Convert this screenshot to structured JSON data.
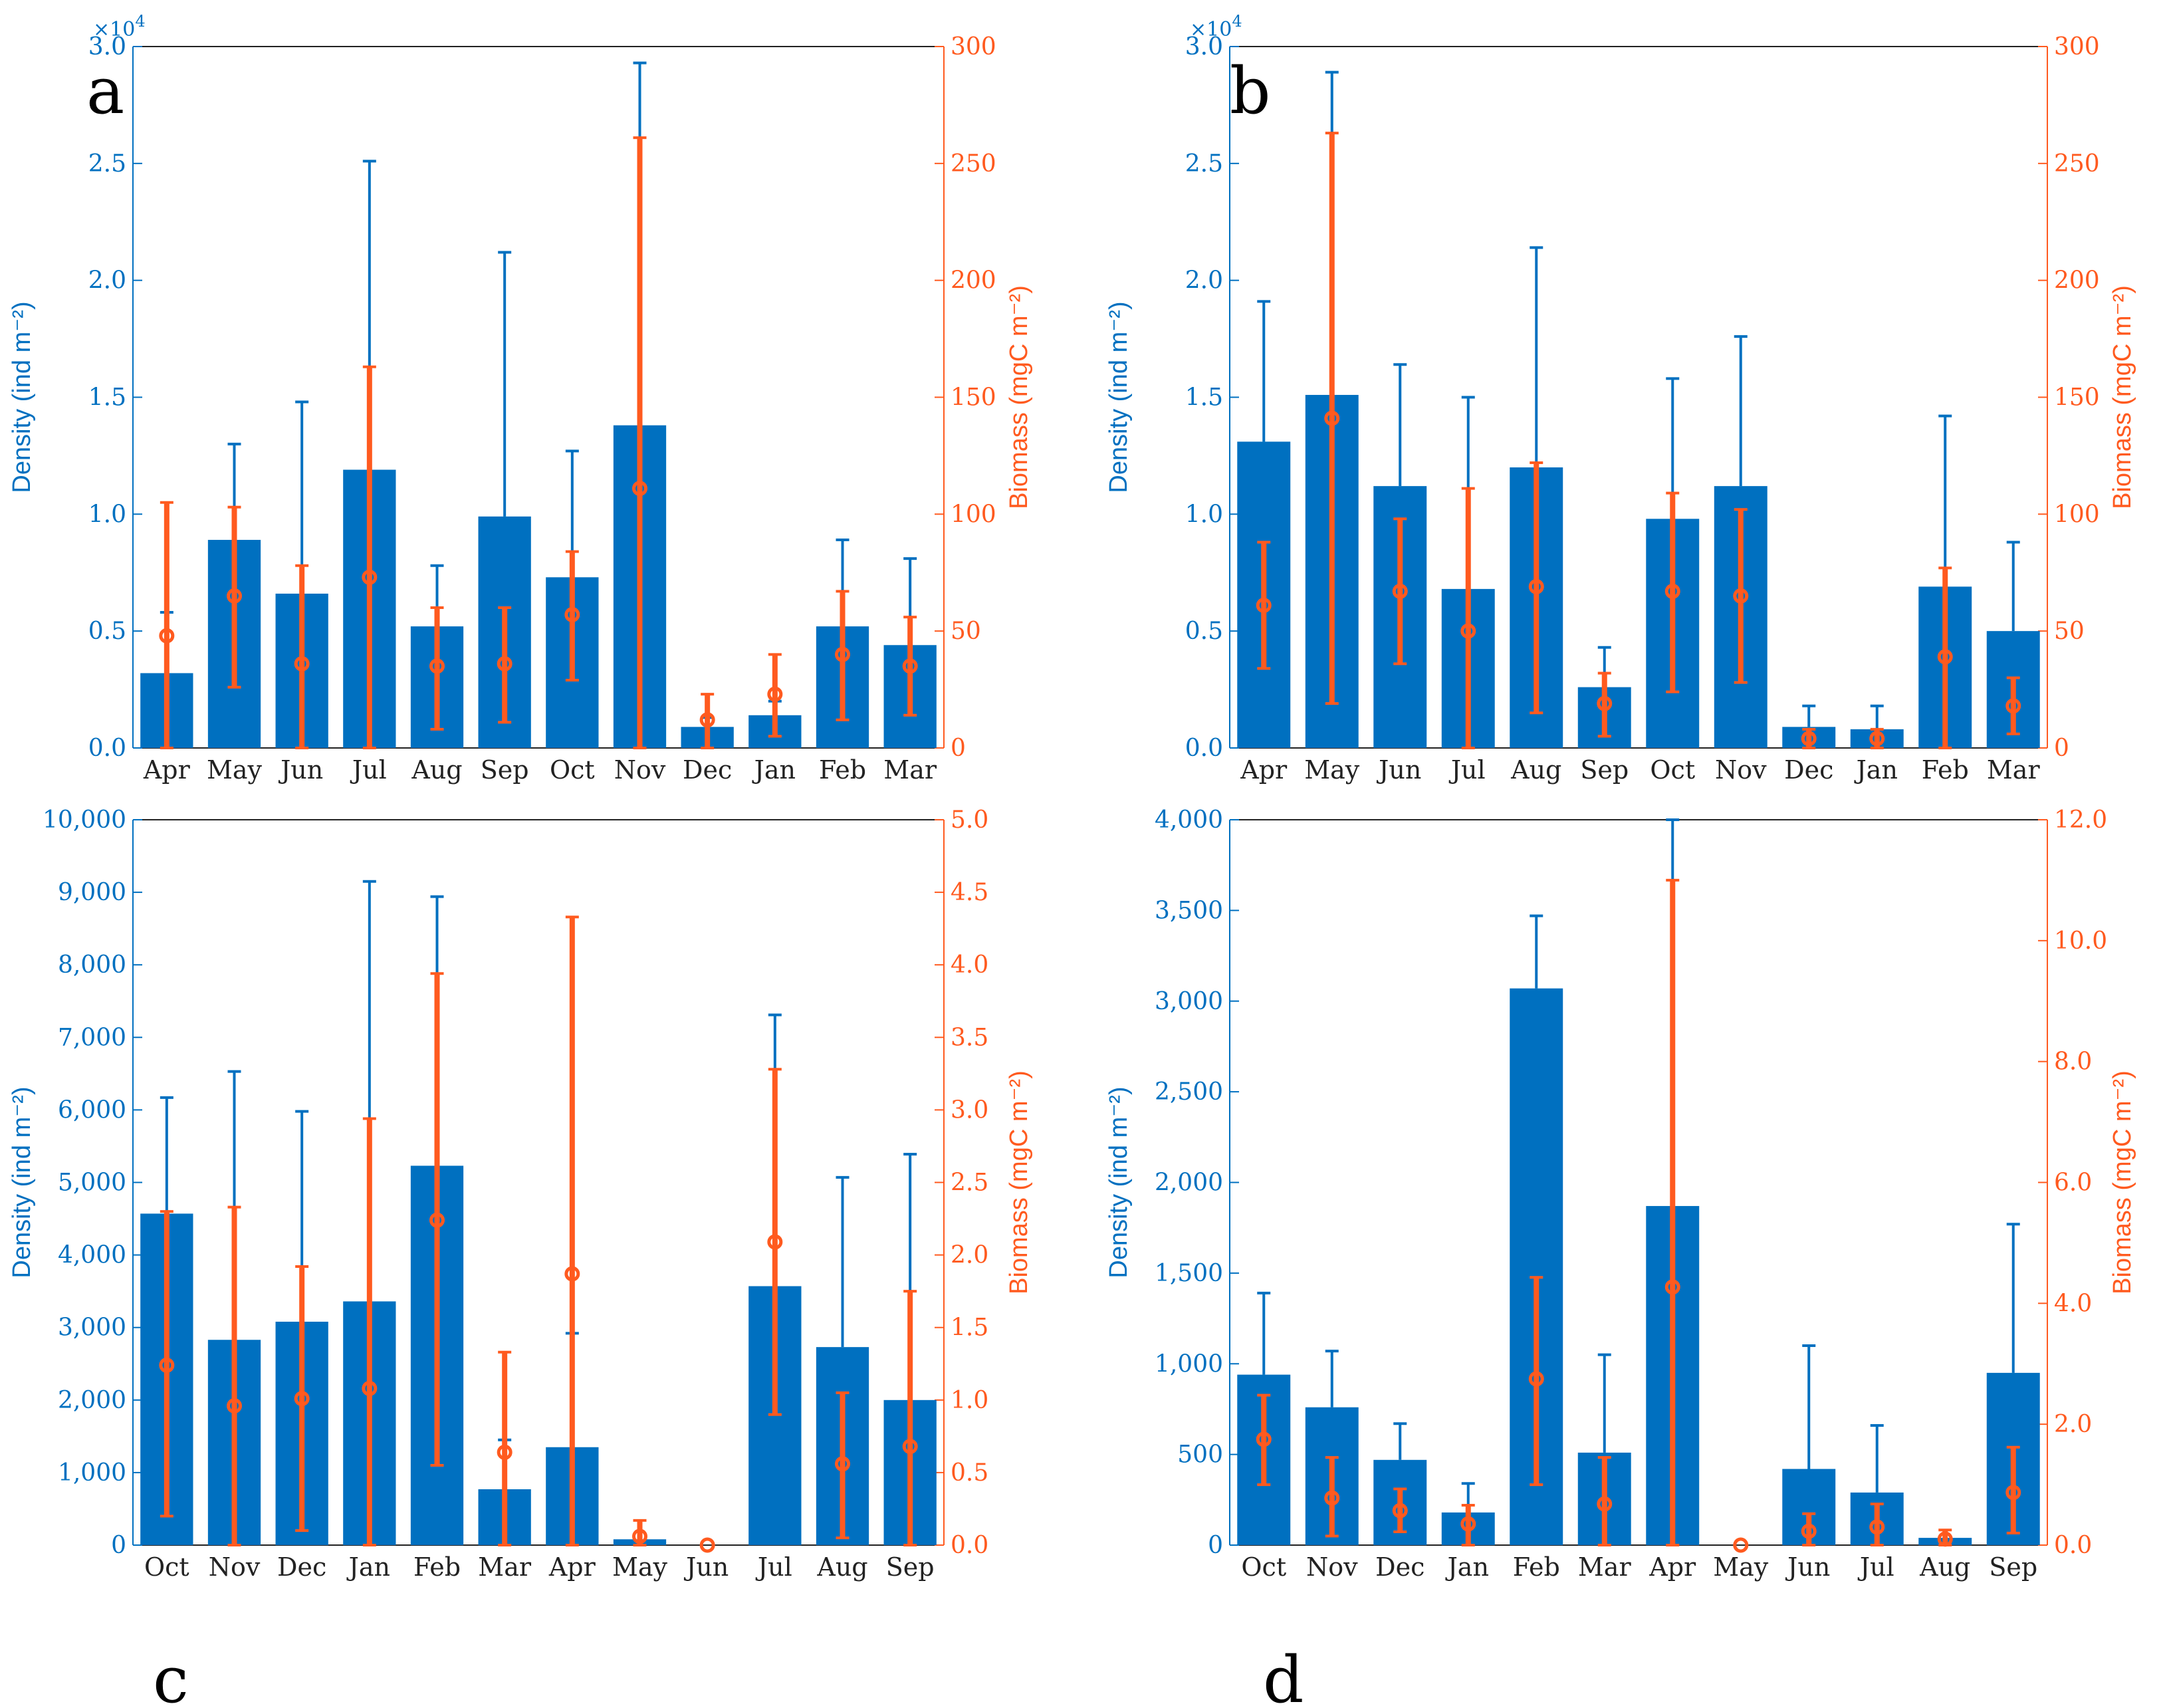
{
  "colors": {
    "density": "#0070C0",
    "biomass": "#FF5A1F",
    "axis": "#222222"
  },
  "chart_data": [
    {
      "type": "bar",
      "panel": "a",
      "categories": [
        "Apr",
        "May",
        "Jun",
        "Jul",
        "Aug",
        "Sep",
        "Oct",
        "Nov",
        "Dec",
        "Jan",
        "Feb",
        "Mar"
      ],
      "ylabel": "Density (ind m⁻²)",
      "y2label": "Biomass (mgC m⁻²)",
      "yscale_label": "×10",
      "yscale_exp": "4",
      "ylim": [
        0,
        3.0
      ],
      "yticks": [
        0,
        0.5,
        1.0,
        1.5,
        2.0,
        2.5,
        3.0
      ],
      "ytick_labels": [
        "0.0",
        "0.5",
        "1.0",
        "1.5",
        "2.0",
        "2.5",
        "3.0"
      ],
      "y2lim": [
        0,
        300
      ],
      "y2ticks": [
        0,
        50,
        100,
        150,
        200,
        250,
        300
      ],
      "y2tick_labels": [
        "0",
        "50",
        "100",
        "150",
        "200",
        "250",
        "300"
      ],
      "series": [
        {
          "name": "Density",
          "axis": "left",
          "values": [
            0.32,
            0.89,
            0.66,
            1.19,
            0.52,
            0.99,
            0.73,
            1.38,
            0.09,
            0.14,
            0.52,
            0.44
          ],
          "err_high": [
            0.58,
            1.3,
            1.48,
            2.51,
            0.78,
            2.12,
            1.27,
            2.93,
            0.13,
            0.2,
            0.89,
            0.81
          ]
        },
        {
          "name": "Biomass",
          "axis": "right",
          "values": [
            48,
            65,
            36,
            73,
            35,
            36,
            57,
            111,
            12,
            23,
            40,
            35
          ],
          "err_low": [
            0,
            26,
            0,
            0,
            8,
            11,
            29,
            0,
            0,
            5,
            12,
            14
          ],
          "err_high": [
            105,
            103,
            78,
            163,
            60,
            60,
            84,
            261,
            23,
            40,
            67,
            56
          ]
        }
      ]
    },
    {
      "type": "bar",
      "panel": "b",
      "categories": [
        "Apr",
        "May",
        "Jun",
        "Jul",
        "Aug",
        "Sep",
        "Oct",
        "Nov",
        "Dec",
        "Jan",
        "Feb",
        "Mar"
      ],
      "ylabel": "Density (ind m⁻²)",
      "y2label": "Biomass (mgC m⁻²)",
      "yscale_label": "×10",
      "yscale_exp": "4",
      "ylim": [
        0,
        3.0
      ],
      "yticks": [
        0,
        0.5,
        1.0,
        1.5,
        2.0,
        2.5,
        3.0
      ],
      "ytick_labels": [
        "0.0",
        "0.5",
        "1.0",
        "1.5",
        "2.0",
        "2.5",
        "3.0"
      ],
      "y2lim": [
        0,
        300
      ],
      "y2ticks": [
        0,
        50,
        100,
        150,
        200,
        250,
        300
      ],
      "y2tick_labels": [
        "0",
        "50",
        "100",
        "150",
        "200",
        "250",
        "300"
      ],
      "series": [
        {
          "name": "Density",
          "axis": "left",
          "values": [
            1.31,
            1.51,
            1.12,
            0.68,
            1.2,
            0.26,
            0.98,
            1.12,
            0.09,
            0.08,
            0.69,
            0.5
          ],
          "err_high": [
            1.91,
            2.89,
            1.64,
            1.5,
            2.14,
            0.43,
            1.58,
            1.76,
            0.18,
            0.18,
            1.42,
            0.88
          ]
        },
        {
          "name": "Biomass",
          "axis": "right",
          "values": [
            61,
            141,
            67,
            50,
            69,
            19,
            67,
            65,
            4,
            4,
            39,
            18
          ],
          "err_low": [
            34,
            19,
            36,
            0,
            15,
            5,
            24,
            28,
            0,
            0,
            0,
            6
          ],
          "err_high": [
            88,
            263,
            98,
            111,
            122,
            32,
            109,
            102,
            8,
            8,
            77,
            30
          ]
        }
      ]
    },
    {
      "type": "bar",
      "panel": "c",
      "categories": [
        "Oct",
        "Nov",
        "Dec",
        "Jan",
        "Feb",
        "Mar",
        "Apr",
        "May",
        "Jun",
        "Jul",
        "Aug",
        "Sep"
      ],
      "ylabel": "Density (ind m⁻²)",
      "y2label": "Biomass (mgC m⁻²)",
      "ylim": [
        0,
        10000
      ],
      "yticks": [
        0,
        1000,
        2000,
        3000,
        4000,
        5000,
        6000,
        7000,
        8000,
        9000,
        10000
      ],
      "ytick_labels": [
        "0",
        "1,000",
        "2,000",
        "3,000",
        "4,000",
        "5,000",
        "6,000",
        "7,000",
        "8,000",
        "9,000",
        "10,000"
      ],
      "y2lim": [
        0,
        5.0
      ],
      "y2ticks": [
        0,
        0.5,
        1.0,
        1.5,
        2.0,
        2.5,
        3.0,
        3.5,
        4.0,
        4.5,
        5.0
      ],
      "y2tick_labels": [
        "0.0",
        "0.5",
        "1.0",
        "1.5",
        "2.0",
        "2.5",
        "3.0",
        "3.5",
        "4.0",
        "4.5",
        "5.0"
      ],
      "series": [
        {
          "name": "Density",
          "axis": "left",
          "values": [
            4570,
            2830,
            3080,
            3360,
            5230,
            770,
            1350,
            80,
            0,
            3570,
            2730,
            2000
          ],
          "err_high": [
            6170,
            6530,
            5980,
            9150,
            8940,
            1450,
            2920,
            0,
            0,
            7310,
            5070,
            5390
          ]
        },
        {
          "name": "Biomass",
          "axis": "right",
          "values": [
            1.24,
            0.96,
            1.01,
            1.08,
            2.24,
            0.64,
            1.87,
            0.06,
            0.0,
            2.09,
            0.56,
            0.68
          ],
          "err_low": [
            0.2,
            0,
            0.1,
            0,
            0.55,
            0,
            0,
            0,
            0,
            0.9,
            0.05,
            0
          ],
          "err_high": [
            2.3,
            2.33,
            1.92,
            2.94,
            3.94,
            1.33,
            4.33,
            0.17,
            0.0,
            3.28,
            1.05,
            1.75
          ]
        }
      ]
    },
    {
      "type": "bar",
      "panel": "d",
      "categories": [
        "Oct",
        "Nov",
        "Dec",
        "Jan",
        "Feb",
        "Mar",
        "Apr",
        "May",
        "Jun",
        "Jul",
        "Aug",
        "Sep"
      ],
      "ylabel": "Density (ind m⁻²)",
      "y2label": "Biomass (mgC m⁻²)",
      "ylim": [
        0,
        4000
      ],
      "yticks": [
        0,
        500,
        1000,
        1500,
        2000,
        2500,
        3000,
        3500,
        4000
      ],
      "ytick_labels": [
        "0",
        "500",
        "1,000",
        "1,500",
        "2,000",
        "2,500",
        "3,000",
        "3,500",
        "4,000"
      ],
      "y2lim": [
        0,
        12.0
      ],
      "y2ticks": [
        0,
        2,
        4,
        6,
        8,
        10,
        12
      ],
      "y2tick_labels": [
        "0.0",
        "2.0",
        "4.0",
        "6.0",
        "8.0",
        "10.0",
        "12.0"
      ],
      "series": [
        {
          "name": "Density",
          "axis": "left",
          "values": [
            940,
            760,
            470,
            180,
            3070,
            510,
            1870,
            0,
            420,
            290,
            40,
            950
          ],
          "err_high": [
            1390,
            1070,
            670,
            340,
            3470,
            1050,
            4000,
            0,
            1100,
            660,
            0,
            1770
          ]
        },
        {
          "name": "Biomass",
          "axis": "right",
          "values": [
            1.75,
            0.78,
            0.57,
            0.35,
            2.75,
            0.68,
            4.27,
            0.0,
            0.23,
            0.3,
            0.1,
            0.87
          ],
          "err_low": [
            1.0,
            0.15,
            0.22,
            0.0,
            1.0,
            0.0,
            0.0,
            0.0,
            0.0,
            0.0,
            0.0,
            0.2
          ],
          "err_high": [
            2.48,
            1.45,
            0.93,
            0.66,
            4.43,
            1.45,
            11.0,
            0.0,
            0.52,
            0.68,
            0.25,
            1.62
          ]
        }
      ]
    }
  ]
}
